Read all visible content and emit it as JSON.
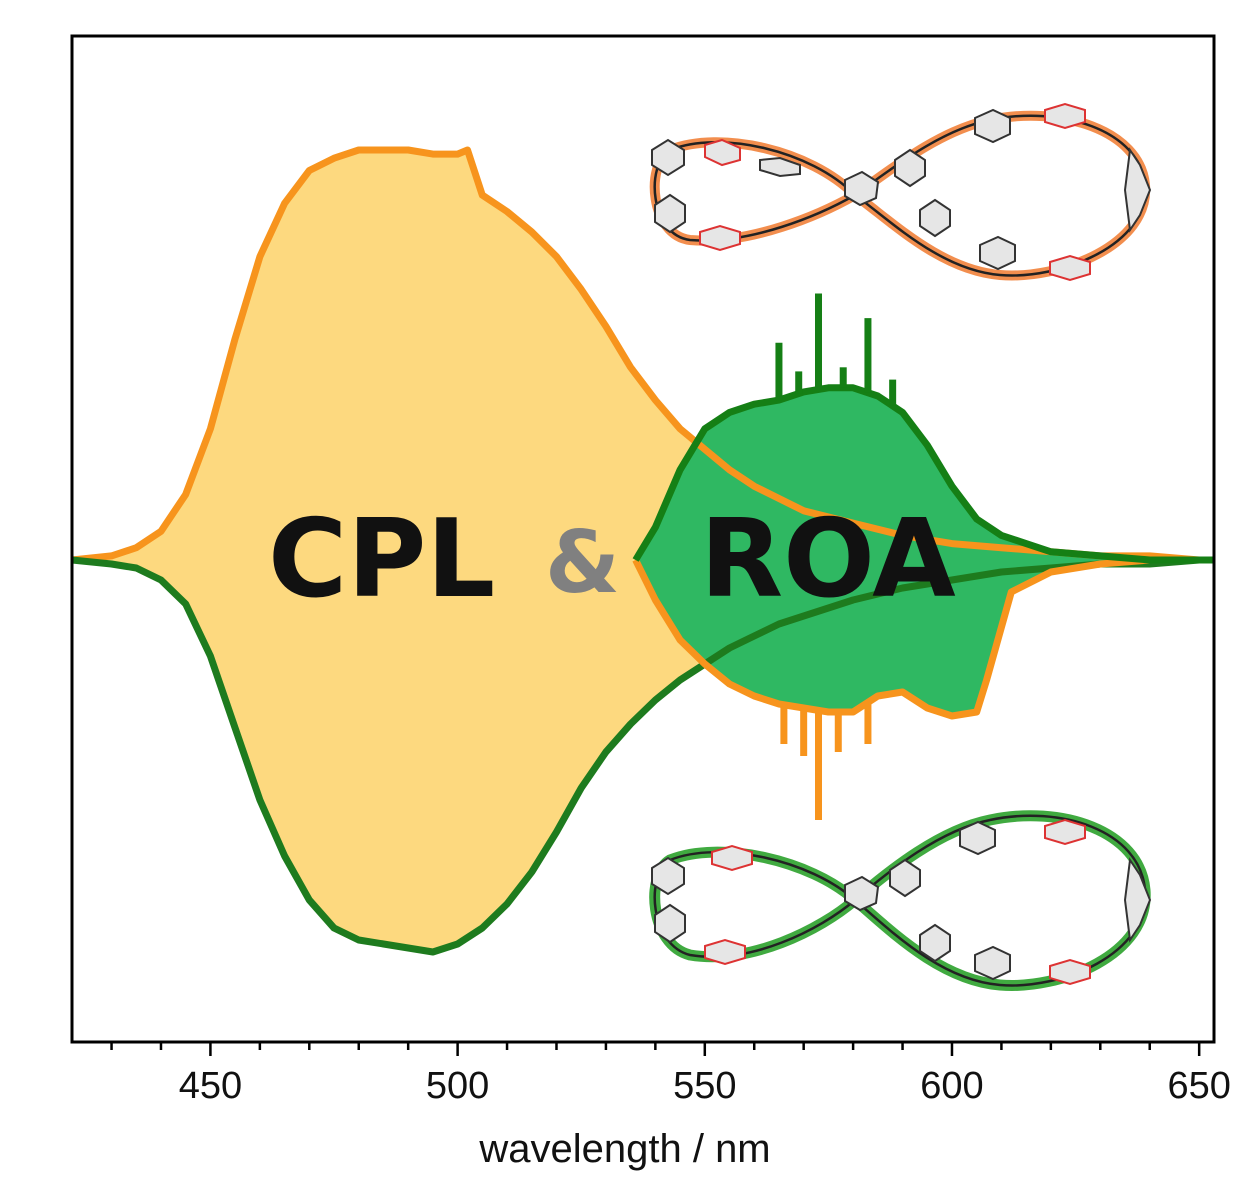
{
  "chart_data": {
    "type": "area",
    "xlabel": "wavelength / nm",
    "ylabel": "",
    "xlim": [
      422,
      653
    ],
    "ylim": [
      -1.0,
      1.0
    ],
    "x_ticks": [
      "450",
      "500",
      "550",
      "600",
      "650"
    ],
    "x_minor_step": 10,
    "overlay_text": {
      "left": "CPL",
      "amp": "&",
      "right": "ROA"
    },
    "colors": {
      "cpl_fill": "#fdd97f",
      "cpl_positive_line": "#f7941d",
      "cpl_negative_line": "#1e7b1e",
      "roa_fill": "#2fb862",
      "roa_positive_line": "#157f15",
      "roa_negative_line": "#f7941d",
      "text": "#111111",
      "amp": "#808080"
    },
    "series": [
      {
        "role": "cpl-positive",
        "x": [
          422,
          430,
          435,
          440,
          445,
          450,
          455,
          460,
          465,
          470,
          475,
          480,
          485,
          490,
          495,
          500,
          502,
          505,
          510,
          515,
          520,
          525,
          530,
          535,
          540,
          545,
          550,
          555,
          560,
          565,
          570,
          580,
          590,
          600,
          610,
          620,
          630,
          640,
          650,
          653
        ],
        "y": [
          0.0,
          0.01,
          0.03,
          0.07,
          0.16,
          0.32,
          0.54,
          0.74,
          0.87,
          0.95,
          0.98,
          1.0,
          1.0,
          1.0,
          0.99,
          0.99,
          1.0,
          0.89,
          0.85,
          0.8,
          0.74,
          0.66,
          0.57,
          0.47,
          0.39,
          0.32,
          0.27,
          0.22,
          0.18,
          0.15,
          0.12,
          0.09,
          0.06,
          0.04,
          0.03,
          0.02,
          0.01,
          0.01,
          0.0,
          0.0
        ]
      },
      {
        "role": "cpl-negative",
        "x": [
          422,
          430,
          435,
          440,
          445,
          450,
          455,
          460,
          465,
          470,
          475,
          480,
          485,
          490,
          495,
          500,
          505,
          510,
          515,
          520,
          525,
          530,
          535,
          540,
          545,
          550,
          555,
          560,
          565,
          570,
          580,
          590,
          600,
          610,
          620,
          630,
          640,
          650,
          653
        ],
        "y": [
          0.0,
          -0.01,
          -0.02,
          -0.05,
          -0.11,
          -0.24,
          -0.42,
          -0.6,
          -0.74,
          -0.85,
          -0.92,
          -0.95,
          -0.96,
          -0.97,
          -0.98,
          -0.96,
          -0.92,
          -0.86,
          -0.78,
          -0.68,
          -0.57,
          -0.48,
          -0.41,
          -0.35,
          -0.3,
          -0.26,
          -0.22,
          -0.19,
          -0.16,
          -0.14,
          -0.1,
          -0.07,
          -0.05,
          -0.03,
          -0.02,
          -0.01,
          -0.01,
          0.0,
          0.0
        ]
      },
      {
        "role": "roa-positive",
        "x": [
          536,
          540,
          545,
          550,
          555,
          560,
          565,
          570,
          575,
          580,
          585,
          590,
          595,
          600,
          605,
          610,
          615,
          620,
          630,
          640,
          650,
          653
        ],
        "y": [
          0.0,
          0.08,
          0.22,
          0.32,
          0.36,
          0.38,
          0.39,
          0.41,
          0.42,
          0.42,
          0.4,
          0.36,
          0.28,
          0.18,
          0.1,
          0.06,
          0.04,
          0.02,
          0.01,
          0.0,
          0.0,
          0.0
        ],
        "spikes": [
          {
            "x": 565,
            "y": 0.53
          },
          {
            "x": 569,
            "y": 0.46
          },
          {
            "x": 573,
            "y": 0.65
          },
          {
            "x": 578,
            "y": 0.47
          },
          {
            "x": 583,
            "y": 0.59
          },
          {
            "x": 588,
            "y": 0.44
          }
        ]
      },
      {
        "role": "roa-negative",
        "x": [
          536,
          540,
          545,
          550,
          555,
          560,
          565,
          570,
          575,
          580,
          585,
          590,
          595,
          600,
          605,
          607,
          612,
          620,
          630,
          640,
          650,
          653
        ],
        "y": [
          0.0,
          -0.1,
          -0.2,
          -0.26,
          -0.31,
          -0.34,
          -0.36,
          -0.37,
          -0.38,
          -0.38,
          -0.34,
          -0.33,
          -0.37,
          -0.39,
          -0.38,
          -0.3,
          -0.08,
          -0.03,
          -0.01,
          0.0,
          0.0,
          0.0
        ],
        "spikes": [
          {
            "x": 566,
            "y": -0.46
          },
          {
            "x": 570,
            "y": -0.49
          },
          {
            "x": 573,
            "y": -0.65
          },
          {
            "x": 577,
            "y": -0.48
          },
          {
            "x": 583,
            "y": -0.46
          }
        ]
      }
    ]
  },
  "insets": {
    "top_molecule": {
      "outline_color": "#f07a2f"
    },
    "bottom_molecule": {
      "outline_color": "#1e9b1e"
    }
  }
}
